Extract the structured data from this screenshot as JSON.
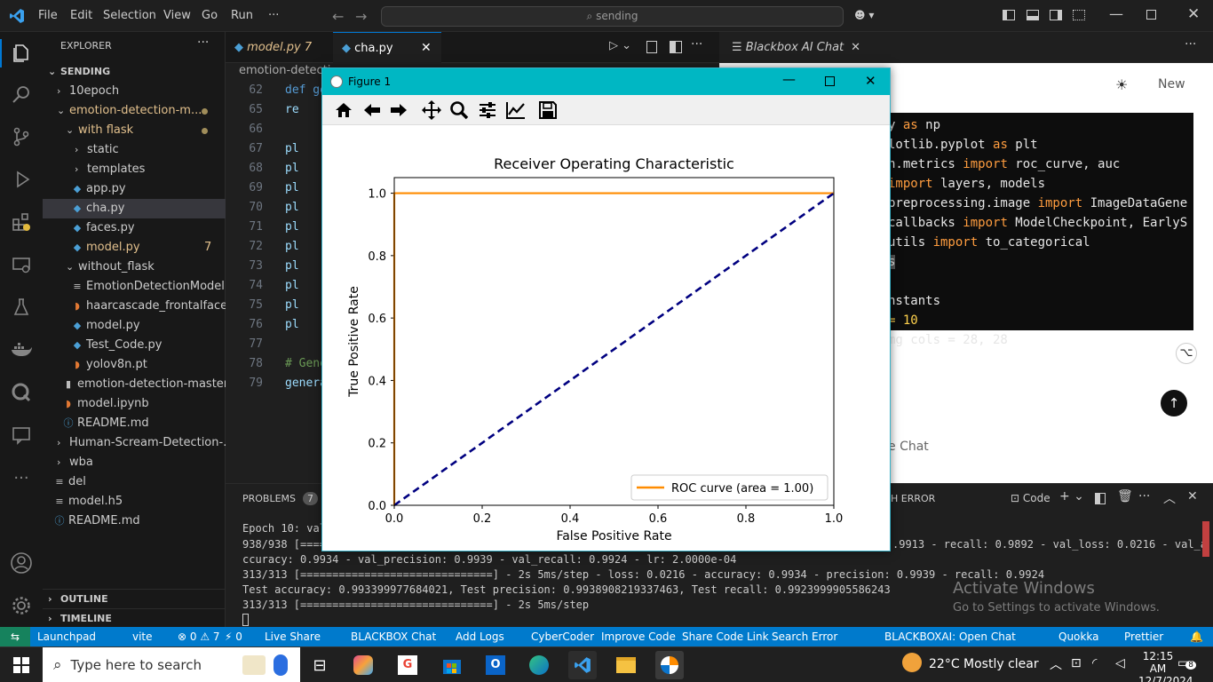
{
  "titlebar": {
    "menu": [
      "File",
      "Edit",
      "Selection",
      "View",
      "Go",
      "Run",
      "···"
    ],
    "search": "sending"
  },
  "sidebar": {
    "header": "EXPLORER",
    "root": "SENDING",
    "items": [
      {
        "label": "10epoch"
      },
      {
        "label": "emotion-detection-m..."
      },
      {
        "label": "with flask"
      },
      {
        "label": "static"
      },
      {
        "label": "templates"
      },
      {
        "label": "app.py"
      },
      {
        "label": "cha.py"
      },
      {
        "label": "faces.py"
      },
      {
        "label": "model.py",
        "badge": "7"
      },
      {
        "label": "without_flask"
      },
      {
        "label": "EmotionDetectionModel...."
      },
      {
        "label": "haarcascade_frontalface_..."
      },
      {
        "label": "model.py"
      },
      {
        "label": "Test_Code.py"
      },
      {
        "label": "yolov8n.pt"
      },
      {
        "label": "emotion-detection-master..."
      },
      {
        "label": "model.ipynb"
      },
      {
        "label": "README.md"
      },
      {
        "label": "Human-Scream-Detection-..."
      },
      {
        "label": "wba"
      },
      {
        "label": "del"
      },
      {
        "label": "model.h5"
      },
      {
        "label": "README.md"
      }
    ],
    "outline": "OUTLINE",
    "timeline": "TIMELINE"
  },
  "editor": {
    "tabs": [
      {
        "label": "model.py 7"
      },
      {
        "label": "cha.py"
      }
    ],
    "breadcrumb": "emotion-detecti",
    "lines": [
      "62",
      "65",
      "66",
      "67",
      "68",
      "69",
      "70",
      "71",
      "72",
      "73",
      "74",
      "75",
      "76",
      "77",
      "78",
      "79"
    ],
    "code": [
      {
        "text": "def ge"
      },
      {
        "text": "re"
      },
      {
        "text": ""
      },
      {
        "text": "pl"
      },
      {
        "text": "pl"
      },
      {
        "text": "pl"
      },
      {
        "text": "pl"
      },
      {
        "text": "pl"
      },
      {
        "text": "pl"
      },
      {
        "text": "pl"
      },
      {
        "text": "pl"
      },
      {
        "text": "pl"
      },
      {
        "text": "pl"
      },
      {
        "text": ""
      },
      {
        "text": "# Gene"
      },
      {
        "text": "genera"
      }
    ]
  },
  "blackbox": {
    "tab": "Blackbox AI Chat",
    "new_label": "New",
    "chat_label": "e Chat",
    "code": [
      {
        "pre": "y ",
        "kw": "as",
        "post": " np"
      },
      {
        "pre": "lotlib.pyplot ",
        "kw": "as",
        "post": " plt"
      },
      {
        "pre": "n.metrics ",
        "kw": "import",
        "post": " roc_curve, auc"
      },
      {
        "pre": "",
        "kw": "import",
        "post": " layers, models"
      },
      {
        "pre": "preprocessing.image ",
        "kw": "import",
        "post": " ImageDataGene"
      },
      {
        "pre": "callbacks ",
        "kw": "import",
        "post": " ModelCheckpoint, EarlyS"
      },
      {
        "pre": "utils ",
        "kw": "import",
        "post": " to_categorical"
      },
      {
        "pre": "s",
        "kw": "",
        "post": ""
      },
      {
        "pre": "",
        "kw": "",
        "post": ""
      },
      {
        "pre": "nstants",
        "kw": "",
        "post": ""
      },
      {
        "pre": " = 10",
        "kw": "",
        "post": ""
      },
      {
        "pre": "mg cols = 28, 28",
        "kw": "",
        "post": ""
      }
    ]
  },
  "figure": {
    "title": "Figure 1"
  },
  "panel": {
    "problems_label": "PROBLEMS",
    "problems_count": "7",
    "error_label": "H ERROR",
    "code_label": "Code",
    "lines": [
      "Epoch 10: val",
      "938/938 [=====",
      "ccuracy: 0.9934 - val_precision: 0.9939 - val_recall: 0.9924 - lr: 2.0000e-04",
      "313/313 [==============================] - 2s 5ms/step - loss: 0.0216 - accuracy: 0.9934 - precision: 0.9939 - recall: 0.9924",
      "Test accuracy: 0.993399977684021, Test precision: 0.9938908219337463, Test recall: 0.9923999905586243",
      "313/313 [==============================] - 2s 5ms/step"
    ],
    "right_fragment": ".9913 - recall: 0.9892 - val_loss: 0.0216 - val_a"
  },
  "activate": {
    "title": "Activate Windows",
    "sub": "Go to Settings to activate Windows."
  },
  "status": {
    "left": [
      "Launchpad",
      "vite",
      "⊗ 0 ⚠ 7",
      "⚡ 0",
      "Live Share",
      "BLACKBOX Chat",
      "Add Logs",
      "CyberCoder",
      "Improve Code",
      "Share Code Link",
      "Search Error"
    ],
    "right": [
      "BLACKBOXAI: Open Chat",
      "Quokka",
      "Prettier"
    ]
  },
  "taskbar": {
    "search": "Type here to search",
    "weather": "22°C  Mostly clear",
    "time": "12:15 AM",
    "date": "12/7/2024",
    "notif": "8"
  },
  "chart_data": {
    "type": "line",
    "title": "Receiver Operating Characteristic",
    "xlabel": "False Positive Rate",
    "ylabel": "True Positive Rate",
    "xlim": [
      0,
      1
    ],
    "ylim": [
      0,
      1.05
    ],
    "xticks": [
      "0.0",
      "0.2",
      "0.4",
      "0.6",
      "0.8",
      "1.0"
    ],
    "yticks": [
      "0.0",
      "0.2",
      "0.4",
      "0.6",
      "0.8",
      "1.0"
    ],
    "series": [
      {
        "name": "ROC curve (area = 1.00)",
        "color": "#ff8c00",
        "x": [
          0,
          0,
          1
        ],
        "y": [
          0,
          1,
          1
        ]
      },
      {
        "color": "#000080",
        "dashed": true,
        "x": [
          0,
          1
        ],
        "y": [
          0,
          1
        ]
      }
    ],
    "legend": "lower-right"
  }
}
